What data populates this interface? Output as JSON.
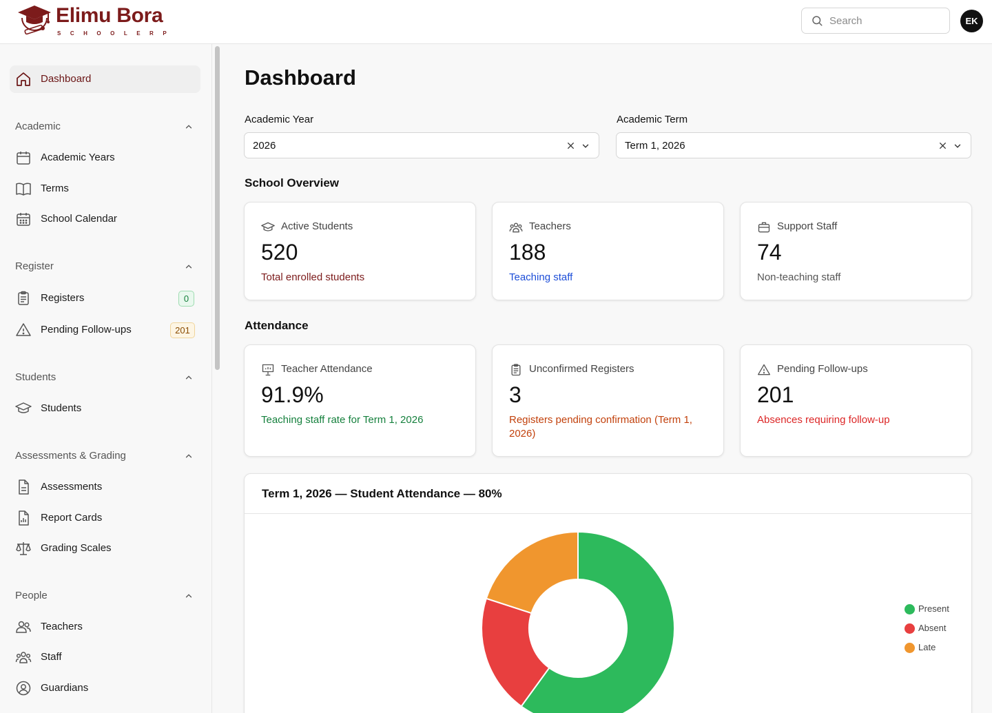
{
  "brand": {
    "name": "Elimu Bora",
    "tagline": "SCHOOLERP"
  },
  "header": {
    "search_placeholder": "Search",
    "avatar_initials": "EK"
  },
  "sidebar": {
    "dashboard": "Dashboard",
    "sections": [
      {
        "title": "Academic",
        "items": [
          "Academic Years",
          "Terms",
          "School Calendar"
        ]
      },
      {
        "title": "Register",
        "items": [
          "Registers",
          "Pending Follow-ups"
        ]
      },
      {
        "title": "Students",
        "items": [
          "Students"
        ]
      },
      {
        "title": "Assessments & Grading",
        "items": [
          "Assessments",
          "Report Cards",
          "Grading Scales"
        ]
      },
      {
        "title": "People",
        "items": [
          "Teachers",
          "Staff",
          "Guardians"
        ]
      }
    ],
    "badges": {
      "registers": "0",
      "pending_followups": "201"
    }
  },
  "main": {
    "title": "Dashboard",
    "filters": {
      "year_label": "Academic Year",
      "year_value": "2026",
      "term_label": "Academic Term",
      "term_value": "Term 1, 2026"
    },
    "overview_title": "School Overview",
    "overview_cards": [
      {
        "title": "Active Students",
        "value": "520",
        "subtitle": "Total enrolled students",
        "subtitle_color": "#7c1b1b"
      },
      {
        "title": "Teachers",
        "value": "188",
        "subtitle": "Teaching staff",
        "subtitle_color": "#1d4ed8"
      },
      {
        "title": "Support Staff",
        "value": "74",
        "subtitle": "Non-teaching staff",
        "subtitle_color": "#555555"
      }
    ],
    "attendance_title": "Attendance",
    "attendance_cards": [
      {
        "title": "Teacher Attendance",
        "value": "91.9%",
        "subtitle": "Teaching staff rate for Term 1, 2026",
        "subtitle_color": "#15803d"
      },
      {
        "title": "Unconfirmed Registers",
        "value": "3",
        "subtitle": "Registers pending confirmation (Term 1, 2026)",
        "subtitle_color": "#c2410c"
      },
      {
        "title": "Pending Follow-ups",
        "value": "201",
        "subtitle": "Absences requiring follow-up",
        "subtitle_color": "#dc2626"
      }
    ],
    "chart_title": "Term 1, 2026 — Student Attendance — 80%"
  },
  "chart_data": {
    "type": "pie",
    "title": "Term 1, 2026 — Student Attendance — 80%",
    "variant": "donut",
    "legend_position": "right",
    "categories": [
      "Present",
      "Absent",
      "Late"
    ],
    "values": [
      60,
      20,
      20
    ],
    "colors": [
      "#2dba5c",
      "#e83f3f",
      "#f0962e"
    ]
  }
}
